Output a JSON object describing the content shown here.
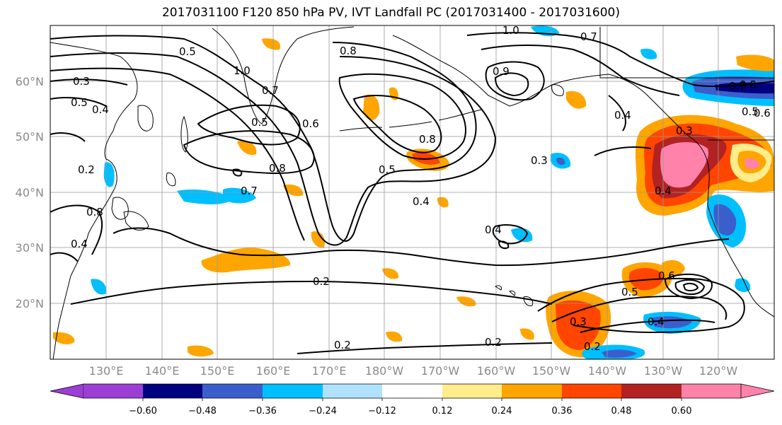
{
  "title": "2017031100 F120 850 hPa PV, IVT Landfall PC (2017031400 - 2017031600)",
  "lat_ticks": [
    "60°N",
    "50°N",
    "40°N",
    "30°N",
    "20°N"
  ],
  "lon_ticks": [
    "130°E",
    "140°E",
    "150°E",
    "160°E",
    "170°E",
    "180°W",
    "170°W",
    "160°W",
    "150°W",
    "140°W",
    "130°W",
    "120°W"
  ],
  "colorbar": {
    "tick_labels": [
      "−0.60",
      "−0.48",
      "−0.36",
      "−0.24",
      "−0.12",
      "0.12",
      "0.24",
      "0.36",
      "0.48",
      "0.60"
    ],
    "colors": [
      "#9b3fd4",
      "#000080",
      "#3a5fcd",
      "#00bfff",
      "#b0e2ff",
      "#ffffff",
      "#ffec8b",
      "#ffa500",
      "#ff4500",
      "#b22222",
      "#ff82ab"
    ]
  },
  "contour_labels": [
    "0.5",
    "0.8",
    "1.0",
    "0.7",
    "1.0",
    "0.3",
    "0.5",
    "0.4",
    "0.7",
    "0.6",
    "0.5",
    "0.8",
    "0.7",
    "0.8",
    "0.5",
    "0.4",
    "0.4",
    "0.2",
    "0.2",
    "0.2",
    "0.3",
    "0.5",
    "0.3",
    "0.4",
    "0.2",
    "0.4",
    "0.6",
    "0.8",
    "0.7",
    "0.5",
    "0.6",
    "0.4",
    "0.2",
    "0.8",
    "0.3",
    "0.4",
    "0.9"
  ]
}
